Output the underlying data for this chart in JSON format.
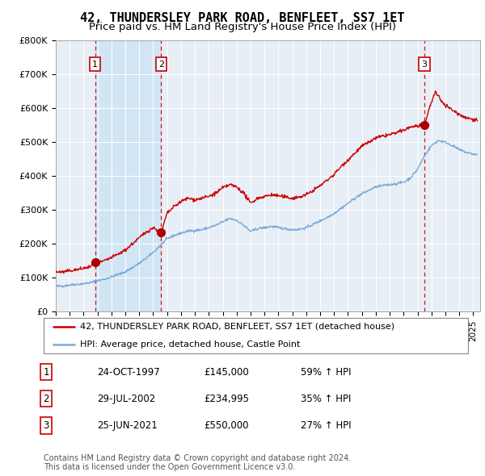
{
  "title": "42, THUNDERSLEY PARK ROAD, BENFLEET, SS7 1ET",
  "subtitle": "Price paid vs. HM Land Registry's House Price Index (HPI)",
  "ylim": [
    0,
    800000
  ],
  "yticks": [
    0,
    100000,
    200000,
    300000,
    400000,
    500000,
    600000,
    700000,
    800000
  ],
  "ytick_labels": [
    "£0",
    "£100K",
    "£200K",
    "£300K",
    "£400K",
    "£500K",
    "£600K",
    "£700K",
    "£800K"
  ],
  "xlim_start": 1995.0,
  "xlim_end": 2025.5,
  "background_color": "#ffffff",
  "plot_bg_color": "#e8eef5",
  "grid_color": "#ffffff",
  "sale_color": "#cc0000",
  "hpi_color": "#7aaadd",
  "sale_marker_color": "#aa0000",
  "dashed_line_color": "#cc0000",
  "shade_color": "#d0e4f5",
  "legend_sale_label": "42, THUNDERSLEY PARK ROAD, BENFLEET, SS7 1ET (detached house)",
  "legend_hpi_label": "HPI: Average price, detached house, Castle Point",
  "sales": [
    {
      "date_year": 1997.82,
      "price": 145000,
      "label": "1",
      "date_str": "24-OCT-1997",
      "price_str": "£145,000",
      "pct_str": "59% ↑ HPI"
    },
    {
      "date_year": 2002.58,
      "price": 234995,
      "label": "2",
      "date_str": "29-JUL-2002",
      "price_str": "£234,995",
      "pct_str": "35% ↑ HPI"
    },
    {
      "date_year": 2021.49,
      "price": 550000,
      "label": "3",
      "date_str": "25-JUN-2021",
      "price_str": "£550,000",
      "pct_str": "27% ↑ HPI"
    }
  ],
  "footer_line1": "Contains HM Land Registry data © Crown copyright and database right 2024.",
  "footer_line2": "This data is licensed under the Open Government Licence v3.0.",
  "title_fontsize": 11,
  "subtitle_fontsize": 9.5,
  "tick_fontsize": 8,
  "legend_fontsize": 8,
  "table_fontsize": 8.5
}
